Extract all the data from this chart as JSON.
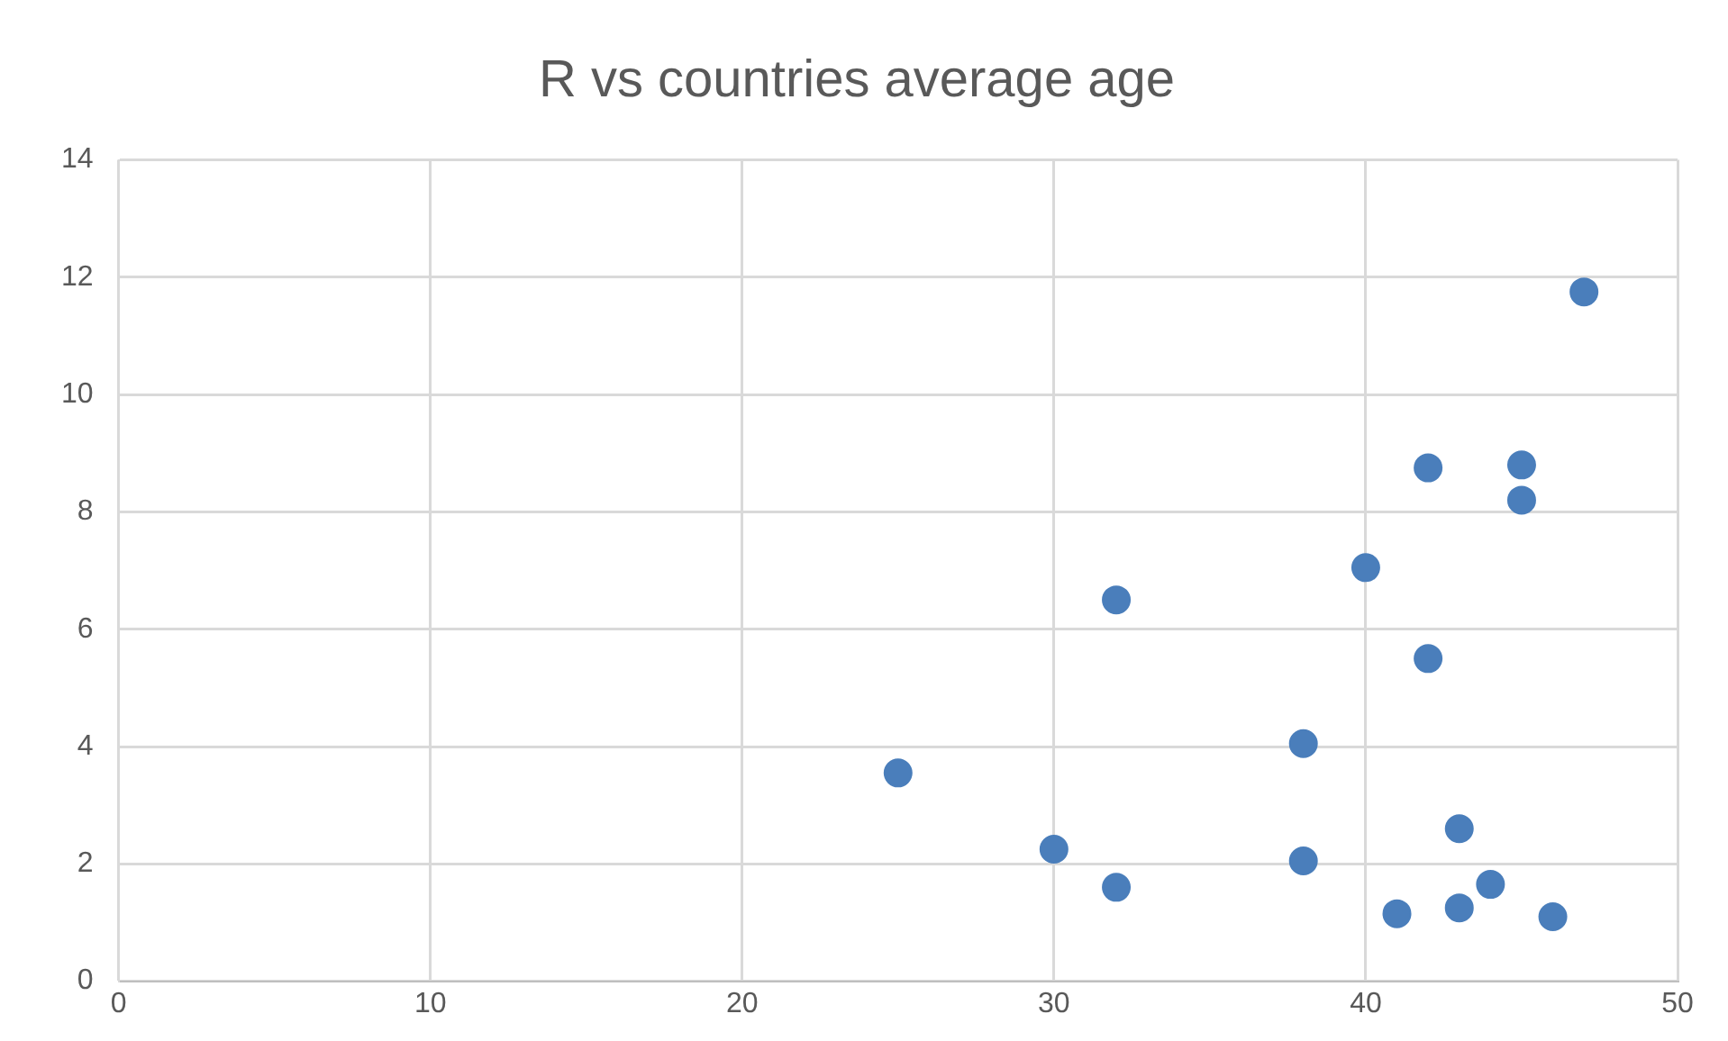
{
  "chart_data": {
    "type": "scatter",
    "title": "R vs countries average age",
    "x": [
      25,
      30,
      32,
      32,
      38,
      38,
      40,
      41,
      42,
      42,
      43,
      43,
      44,
      45,
      45,
      46,
      47
    ],
    "values": [
      3.55,
      2.25,
      1.6,
      6.5,
      4.05,
      2.05,
      7.05,
      1.15,
      8.75,
      5.5,
      2.6,
      1.25,
      1.65,
      8.8,
      8.2,
      1.1,
      11.75
    ],
    "color": "#4a7ebb",
    "xlim": [
      0,
      50
    ],
    "xticks": [
      0,
      10,
      20,
      30,
      40,
      50
    ],
    "ylim": [
      0,
      14
    ],
    "yticks": [
      0,
      2,
      4,
      6,
      8,
      10,
      12,
      14
    ],
    "grid": true,
    "legend": false,
    "marker": "circle"
  }
}
